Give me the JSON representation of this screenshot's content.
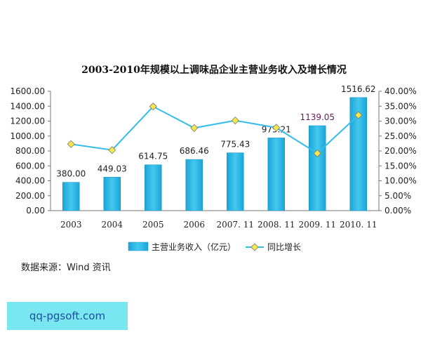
{
  "chart_data": {
    "type": "bar",
    "title": "2003-2010年规模以上调味品企业主营业务收入及增长情况",
    "categories": [
      "2003",
      "2004",
      "2005",
      "2006",
      "2007. 11",
      "2008. 11",
      "2009. 11",
      "2010. 11"
    ],
    "series": [
      {
        "name": "主营业务收入（亿元）",
        "kind": "bar",
        "axis": "left",
        "color": "#33bde8",
        "values": [
          380.0,
          449.03,
          614.75,
          686.46,
          775.43,
          975.21,
          1139.05,
          1516.62
        ],
        "labels": [
          "380.00",
          "449.03",
          "614.75",
          "686.46",
          "775.43",
          "975.21",
          "1139.05",
          "1516.62"
        ]
      },
      {
        "name": "同比增长",
        "kind": "line",
        "axis": "right",
        "color": "#33bde8",
        "marker_color": "#f5e84a",
        "values": [
          22.3,
          20.3,
          34.9,
          27.7,
          30.2,
          27.8,
          19.2,
          32.0
        ]
      }
    ],
    "y_left": {
      "min": 0,
      "max": 1600,
      "ticks": [
        "0.00",
        "200.00",
        "400.00",
        "600.00",
        "800.00",
        "1000.00",
        "1200.00",
        "1400.00",
        "1600.00"
      ]
    },
    "y_right": {
      "min": 0,
      "max": 40,
      "ticks": [
        "0.00%",
        "5.00%",
        "10.00%",
        "15.00%",
        "20.00%",
        "25.00%",
        "30.00%",
        "35.00%",
        "40.00%"
      ]
    },
    "legend_position": "bottom",
    "grid": false
  },
  "source_note": "数据来源：Wind 资讯",
  "watermark": "qq-pgsoft.com"
}
